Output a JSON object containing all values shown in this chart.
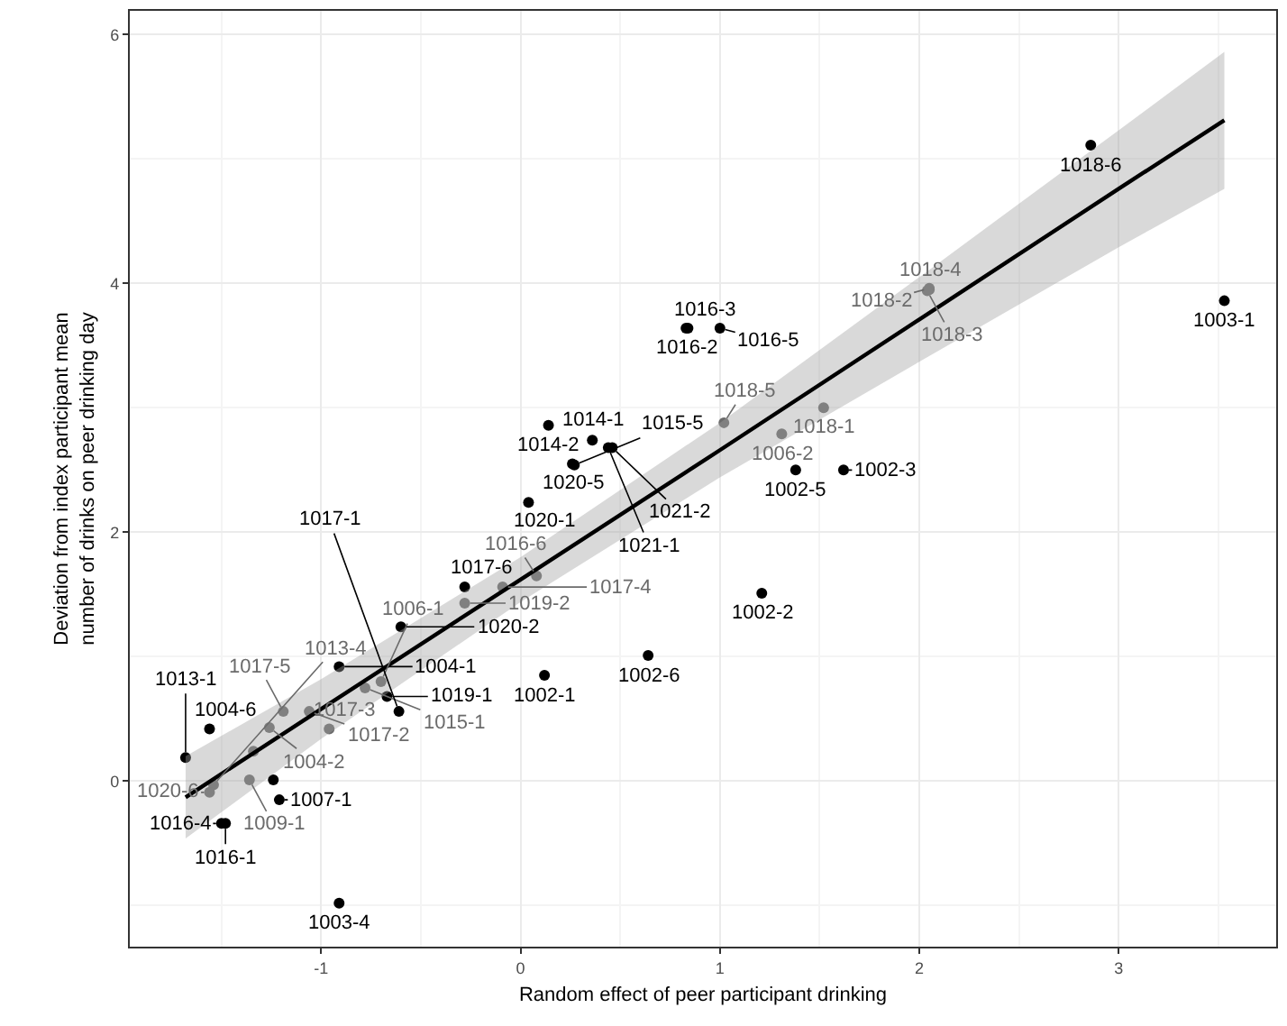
{
  "chart_data": {
    "type": "scatter",
    "xlabel": "Random effect of peer participant drinking",
    "ylabel": "Deviation from index participant mean\nnumber of drinks on peer drinking day",
    "xlim": [
      -1.96,
      3.79
    ],
    "ylim": [
      -1.33,
      6.19
    ],
    "xticks": [
      -1,
      0,
      1,
      2,
      3
    ],
    "yticks": [
      0,
      2,
      4,
      6
    ],
    "grid": true,
    "series": [
      {
        "marker": "circle",
        "x": [
          -1.56,
          -1.68,
          -1.26,
          -1.34,
          -1.36,
          -1.24,
          -1.21,
          -1.48,
          -1.5,
          -1.54,
          -1.56,
          -1.19,
          -1.06,
          -0.91,
          -0.78,
          -0.7,
          -0.67,
          -0.61,
          -0.96,
          -0.6,
          -0.28,
          -0.28,
          -0.09,
          -0.91,
          0.08,
          0.14,
          0.36,
          0.26,
          0.27,
          0.04,
          0.44,
          0.46,
          0.83,
          0.84,
          1.0,
          1.02,
          1.31,
          1.52,
          1.38,
          1.62,
          2.05,
          2.05,
          2.04,
          1.21,
          0.64,
          0.12,
          2.86,
          3.53
        ],
        "values": [
          0.42,
          0.19,
          0.43,
          0.24,
          0.01,
          0.01,
          -0.15,
          -0.34,
          -0.34,
          -0.03,
          -0.09,
          0.56,
          0.56,
          0.92,
          0.75,
          0.8,
          0.68,
          0.56,
          0.42,
          1.24,
          1.56,
          1.43,
          1.56,
          -0.98,
          1.65,
          2.86,
          2.74,
          2.55,
          2.54,
          2.24,
          2.68,
          2.68,
          3.64,
          3.64,
          3.64,
          2.88,
          2.79,
          3.0,
          2.5,
          2.5,
          3.95,
          3.96,
          3.94,
          1.51,
          1.01,
          0.85,
          5.11,
          3.86
        ],
        "value_labels": [
          "1004-6",
          "1013-1",
          "1004-2",
          null,
          "1009-1",
          null,
          "1007-1",
          "1016-1",
          "1016-4",
          "1013-4",
          "1020-6",
          "1017-5",
          "1017-2",
          "1004-1",
          "1015-1",
          "1006-1",
          "1019-1",
          "1017-1",
          "1017-3",
          "1020-2",
          "1017-6",
          "1019-2",
          "1017-4",
          "1003-4",
          "1016-6",
          "1014-2",
          "1014-1",
          "1020-5",
          "1015-5",
          "1020-1",
          "1021-1",
          "1021-2",
          "1016-2",
          "1016-3",
          "1016-5",
          "1018-5",
          "1006-2",
          "1018-1",
          "1002-5",
          "1002-3",
          "1018-4",
          "1018-2",
          "1018-3",
          "1002-2",
          "1002-6",
          "1002-1",
          "1018-6",
          "1003-1"
        ],
        "colors": [
          "#000000",
          "#000000",
          "#6b6b6b",
          "#6b6b6b",
          "#6b6b6b",
          "#000000",
          "#000000",
          "#000000",
          "#000000",
          "#6b6b6b",
          "#6b6b6b",
          "#6b6b6b",
          "#6b6b6b",
          "#000000",
          "#6b6b6b",
          "#6b6b6b",
          "#000000",
          "#000000",
          "#6b6b6b",
          "#000000",
          "#000000",
          "#6b6b6b",
          "#6b6b6b",
          "#000000",
          "#6b6b6b",
          "#000000",
          "#000000",
          "#000000",
          "#000000",
          "#000000",
          "#000000",
          "#000000",
          "#000000",
          "#000000",
          "#000000",
          "#6b6b6b",
          "#6b6b6b",
          "#6b6b6b",
          "#000000",
          "#000000",
          "#6b6b6b",
          "#6b6b6b",
          "#6b6b6b",
          "#000000",
          "#000000",
          "#000000",
          "#000000",
          "#000000"
        ]
      },
      {
        "type": "line",
        "color": "#000000",
        "line_style": "solid",
        "x": [
          -1.68,
          -1,
          0,
          1,
          2,
          3,
          3.53
        ],
        "values": [
          -0.13,
          0.58,
          1.62,
          2.66,
          3.71,
          4.76,
          5.31
        ],
        "lower": [
          -0.46,
          0.34,
          1.44,
          2.44,
          3.37,
          4.29,
          4.76
        ],
        "upper": [
          0.2,
          0.82,
          1.8,
          2.88,
          4.05,
          5.23,
          5.86
        ]
      }
    ]
  }
}
